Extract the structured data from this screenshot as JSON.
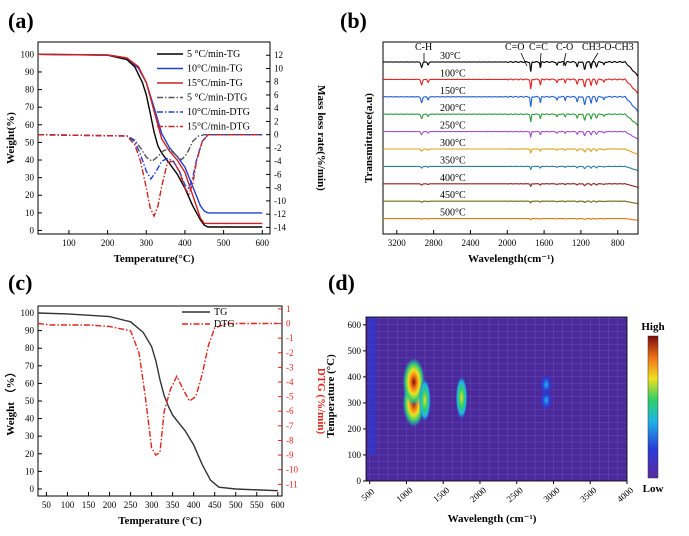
{
  "panels": {
    "a": {
      "label": "(a)",
      "xlabel": "Temperature(°C)",
      "ylabel": "Weight(%)",
      "y2label": "Mass loss rate(%/min)",
      "xticks": [
        "100",
        "200",
        "300",
        "400",
        "500",
        "600"
      ],
      "yticks": [
        "0",
        "10",
        "20",
        "30",
        "40",
        "50",
        "60",
        "70",
        "80",
        "90",
        "100"
      ],
      "y2ticks": [
        "-14",
        "-12",
        "-10",
        "-8",
        "-6",
        "-4",
        "-2",
        "0",
        "2",
        "4",
        "6",
        "8",
        "10",
        "12"
      ],
      "legend": [
        "5 °C/min-TG",
        "10°C/min-TG",
        "15°C/min-TG",
        "5 °C/min-DTG",
        "10°C/min-DTG",
        "15°C/min-DTG"
      ]
    },
    "b": {
      "label": "(b)",
      "xlabel": "Wavelength(cm⁻¹)",
      "ylabel": "Transmittance(a.u)",
      "xticks": [
        "3200",
        "2800",
        "2400",
        "2000",
        "1600",
        "1200",
        "800"
      ],
      "temps": [
        "30°C",
        "100°C",
        "150°C",
        "200°C",
        "250°C",
        "300°C",
        "350°C",
        "400°C",
        "450°C",
        "500°C"
      ],
      "annotations": [
        "C-H",
        "C=O",
        "C=C",
        "C-O",
        "CH3-O-CH3"
      ]
    },
    "c": {
      "label": "(c)",
      "xlabel": "Temperature (°C)",
      "ylabel": "Weight （%）",
      "y2label": "DTG (%/min)",
      "xticks": [
        "50",
        "100",
        "150",
        "200",
        "250",
        "300",
        "350",
        "400",
        "450",
        "500",
        "550",
        "600"
      ],
      "yticks": [
        "0",
        "10",
        "20",
        "30",
        "40",
        "50",
        "60",
        "70",
        "80",
        "90",
        "100"
      ],
      "y2ticks": [
        "1",
        "0",
        "-1",
        "-2",
        "-3",
        "-4",
        "-5",
        "-6",
        "-7",
        "-8",
        "-9",
        "-10",
        "-11"
      ],
      "legend": [
        "TG",
        "DTG"
      ]
    },
    "d": {
      "label": "(d)",
      "xlabel": "Wavelength (cm⁻¹)",
      "ylabel": "Temperature (°C)",
      "xticks": [
        "500",
        "1000",
        "1500",
        "2000",
        "2500",
        "3000",
        "3500",
        "4000"
      ],
      "yticks": [
        "0",
        "100",
        "200",
        "300",
        "400",
        "500",
        "600"
      ],
      "colorbar_high": "High",
      "colorbar_low": "Low"
    }
  },
  "chart_data": [
    {
      "panel": "a",
      "type": "line",
      "xlim": [
        20,
        620
      ],
      "ylim": [
        -2,
        107
      ],
      "y2lim": [
        -15,
        14
      ],
      "series": [
        {
          "name": "5 °C/min-TG",
          "axis": "y",
          "color": "#000000",
          "style": "solid",
          "x": [
            20,
            200,
            250,
            270,
            290,
            300,
            310,
            320,
            330,
            340,
            350,
            360,
            380,
            400,
            420,
            440,
            450,
            460,
            600
          ],
          "y": [
            100,
            99.5,
            97,
            93,
            84,
            77,
            67,
            56,
            48,
            44,
            41,
            38,
            32,
            24,
            14,
            6,
            3,
            2,
            2
          ]
        },
        {
          "name": "10°C/min-TG",
          "axis": "y",
          "color": "#2040d0",
          "style": "solid",
          "x": [
            20,
            200,
            250,
            280,
            300,
            320,
            340,
            360,
            380,
            400,
            420,
            440,
            450,
            460,
            600
          ],
          "y": [
            100,
            99.6,
            98,
            92,
            84,
            70,
            55,
            47,
            42,
            36,
            25,
            14,
            11,
            10,
            10
          ]
        },
        {
          "name": "15°C/min-TG",
          "axis": "y",
          "color": "#d02020",
          "style": "solid",
          "x": [
            20,
            200,
            250,
            280,
            300,
            320,
            340,
            360,
            380,
            400,
            420,
            440,
            450,
            460,
            600
          ],
          "y": [
            100,
            99.6,
            98,
            93,
            84,
            68,
            52,
            45,
            40,
            33,
            20,
            7,
            4,
            4,
            4
          ]
        },
        {
          "name": "5 °C/min-DTG",
          "axis": "y2",
          "color": "#555555",
          "style": "dashdot",
          "x": [
            20,
            250,
            270,
            285,
            300,
            315,
            330,
            345,
            360,
            375,
            390,
            400,
            410,
            420,
            435,
            450,
            600
          ],
          "y": [
            0,
            -0.2,
            -0.8,
            -2,
            -3.4,
            -4,
            -3.3,
            -2.4,
            -2.2,
            -3,
            -3.8,
            -3.3,
            -2.3,
            -1,
            -0.2,
            0,
            0
          ]
        },
        {
          "name": "10°C/min-DTG",
          "axis": "y2",
          "color": "#2040d0",
          "style": "dashdot",
          "x": [
            20,
            250,
            270,
            285,
            300,
            312,
            325,
            340,
            355,
            370,
            385,
            400,
            410,
            420,
            430,
            445,
            460,
            600
          ],
          "y": [
            0,
            -0.2,
            -1,
            -3,
            -5.5,
            -6.7,
            -5.6,
            -4,
            -3.6,
            -4,
            -5.4,
            -7.6,
            -8.1,
            -6.5,
            -3.8,
            -1,
            0,
            0
          ]
        },
        {
          "name": "15°C/min-DTG",
          "axis": "y2",
          "color": "#d02020",
          "style": "dashdot",
          "x": [
            20,
            250,
            270,
            285,
            300,
            310,
            320,
            330,
            340,
            355,
            370,
            385,
            400,
            410,
            420,
            430,
            445,
            460,
            600
          ],
          "y": [
            0,
            -0.2,
            -1.5,
            -4,
            -8,
            -11,
            -12.3,
            -10.8,
            -7.8,
            -4.2,
            -4,
            -5.5,
            -8,
            -9,
            -7.5,
            -4,
            -1,
            0,
            0
          ]
        }
      ]
    },
    {
      "panel": "b",
      "type": "line",
      "xlim": [
        3350,
        580
      ],
      "series": [
        {
          "name": "30°C",
          "color": "#000000"
        },
        {
          "name": "100°C",
          "color": "#e02020"
        },
        {
          "name": "150°C",
          "color": "#1f5fd0"
        },
        {
          "name": "200°C",
          "color": "#2e9b38"
        },
        {
          "name": "250°C",
          "color": "#a050c8"
        },
        {
          "name": "300°C",
          "color": "#d9a520"
        },
        {
          "name": "350°C",
          "color": "#2a7fa8"
        },
        {
          "name": "400°C",
          "color": "#8a2020"
        },
        {
          "name": "450°C",
          "color": "#6a6a10"
        },
        {
          "name": "500°C",
          "color": "#e07a10"
        }
      ]
    },
    {
      "panel": "c",
      "type": "line",
      "xlim": [
        30,
        610
      ],
      "ylim": [
        -4,
        104
      ],
      "y2lim": [
        -11.8,
        1.2
      ],
      "series": [
        {
          "name": "TG",
          "axis": "y",
          "color": "#333333",
          "style": "solid",
          "x": [
            30,
            100,
            200,
            250,
            280,
            300,
            310,
            320,
            330,
            340,
            350,
            360,
            380,
            400,
            420,
            440,
            460,
            500,
            600
          ],
          "y": [
            100,
            99.5,
            98,
            95,
            89,
            81,
            73,
            62,
            53,
            47,
            42,
            39,
            33,
            25,
            14,
            5,
            1,
            0,
            -1
          ]
        },
        {
          "name": "DTG",
          "axis": "y2",
          "color": "#e0241b",
          "style": "dashdot",
          "x": [
            30,
            60,
            100,
            150,
            200,
            250,
            270,
            285,
            300,
            310,
            320,
            330,
            345,
            360,
            375,
            390,
            405,
            420,
            435,
            450,
            480,
            600
          ],
          "y": [
            0,
            -0.1,
            -0.1,
            -0.1,
            -0.2,
            -0.5,
            -2,
            -5,
            -8.5,
            -9,
            -8.8,
            -6,
            -4.5,
            -3.6,
            -4.5,
            -5.3,
            -5,
            -3.5,
            -1.5,
            -0.3,
            0,
            0
          ]
        }
      ]
    },
    {
      "panel": "d",
      "type": "heatmap",
      "xlim": [
        450,
        4000
      ],
      "ylim": [
        0,
        630
      ],
      "hotspots": [
        {
          "x": 1100,
          "y": 300,
          "intensity": "high"
        },
        {
          "x": 1100,
          "y": 380,
          "intensity": "high"
        },
        {
          "x": 1250,
          "y": 310,
          "intensity": "medium"
        },
        {
          "x": 1750,
          "y": 320,
          "intensity": "medium"
        },
        {
          "x": 2900,
          "y": 310,
          "intensity": "low"
        },
        {
          "x": 2900,
          "y": 370,
          "intensity": "low"
        }
      ]
    }
  ]
}
